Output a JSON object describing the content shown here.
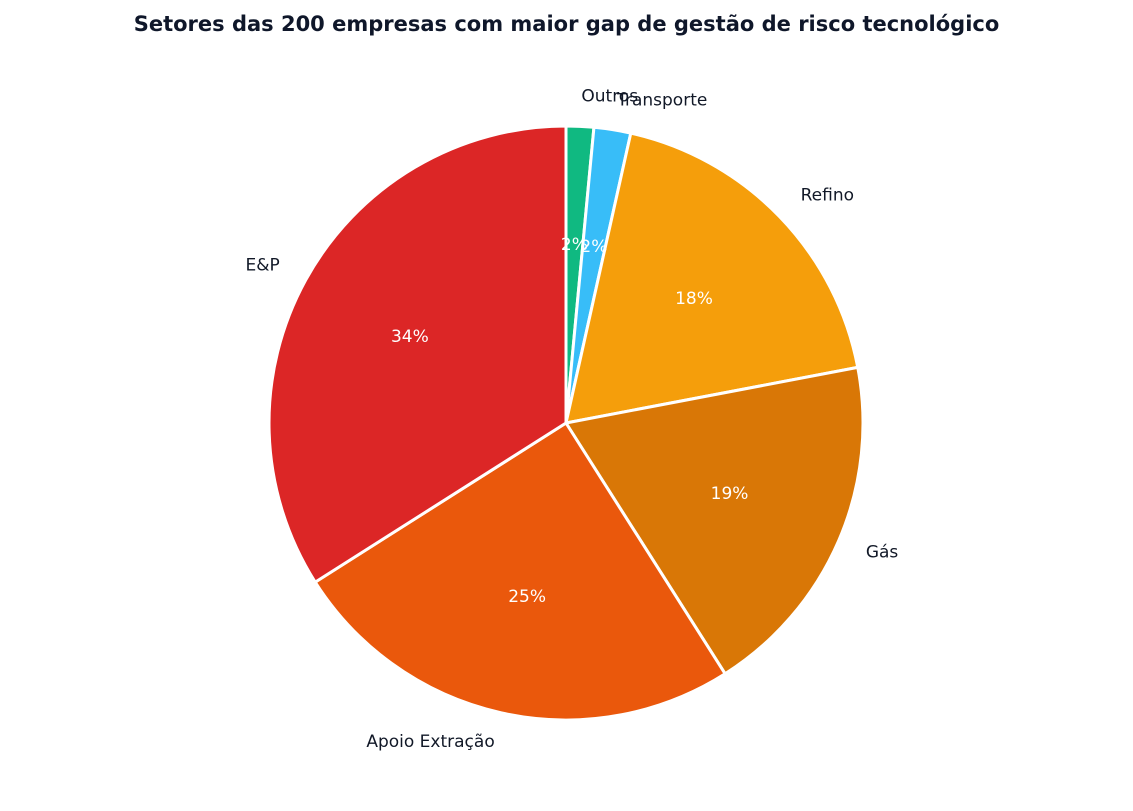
{
  "chart_data": {
    "type": "pie",
    "title": "Setores das 200 empresas com maior gap de gestão de risco tecnológico",
    "slices": [
      {
        "label": "Outros",
        "value": 1.5,
        "pct_label": "2%",
        "color": "#10b981"
      },
      {
        "label": "Transporte",
        "value": 2.0,
        "pct_label": "2%",
        "color": "#38bdf8"
      },
      {
        "label": "Refino",
        "value": 18.5,
        "pct_label": "18%",
        "color": "#f59e0b"
      },
      {
        "label": "Gás",
        "value": 19.0,
        "pct_label": "19%",
        "color": "#d97706"
      },
      {
        "label": "Apoio Extração",
        "value": 25.0,
        "pct_label": "25%",
        "color": "#ea580c"
      },
      {
        "label": "E&P",
        "value": 34.0,
        "pct_label": "34%",
        "color": "#dc2626"
      }
    ],
    "start_angle": "12 o'clock",
    "direction": "clockwise",
    "legend": "none",
    "edge_color": "#ffffff"
  }
}
